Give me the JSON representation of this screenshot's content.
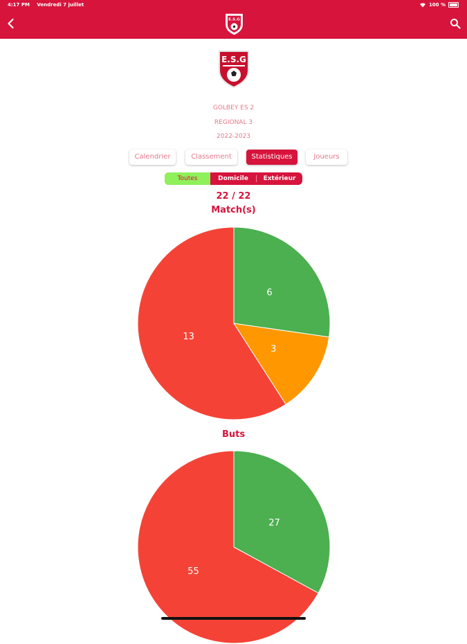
{
  "status_bar": {
    "time": "4:17 PM",
    "date": "Vendredi 7 juillet",
    "battery": "100 %"
  },
  "header": {
    "back_icon": "chevron-left-icon",
    "search_icon": "search-icon",
    "logo_text": "E.S.G"
  },
  "team": {
    "logo_text": "E.S.G",
    "name": "GOLBEY ES 2",
    "division": "REGIONAL 3",
    "season": "2022-2023"
  },
  "tabs": [
    {
      "label": "Calendrier"
    },
    {
      "label": "Classement"
    },
    {
      "label": "Statistiques",
      "active": true
    },
    {
      "label": "Joueurs"
    }
  ],
  "filter": {
    "options": [
      "Toutes",
      "Domicile",
      "Extérieur"
    ],
    "selected": "Toutes"
  },
  "colors": {
    "brand": "#d6143c",
    "win": "#4caf50",
    "draw": "#ff9800",
    "loss": "#f44336",
    "selected_filter": "#8ef05a"
  },
  "stats": {
    "match_count": "22 / 22"
  },
  "chart_data": [
    {
      "type": "pie",
      "title": "Match(s)",
      "values": [
        6,
        3,
        13
      ],
      "colors": [
        "#4caf50",
        "#ff9800",
        "#f44336"
      ]
    },
    {
      "type": "pie",
      "title": "Buts",
      "values": [
        27,
        55
      ],
      "colors": [
        "#4caf50",
        "#f44336"
      ]
    }
  ]
}
